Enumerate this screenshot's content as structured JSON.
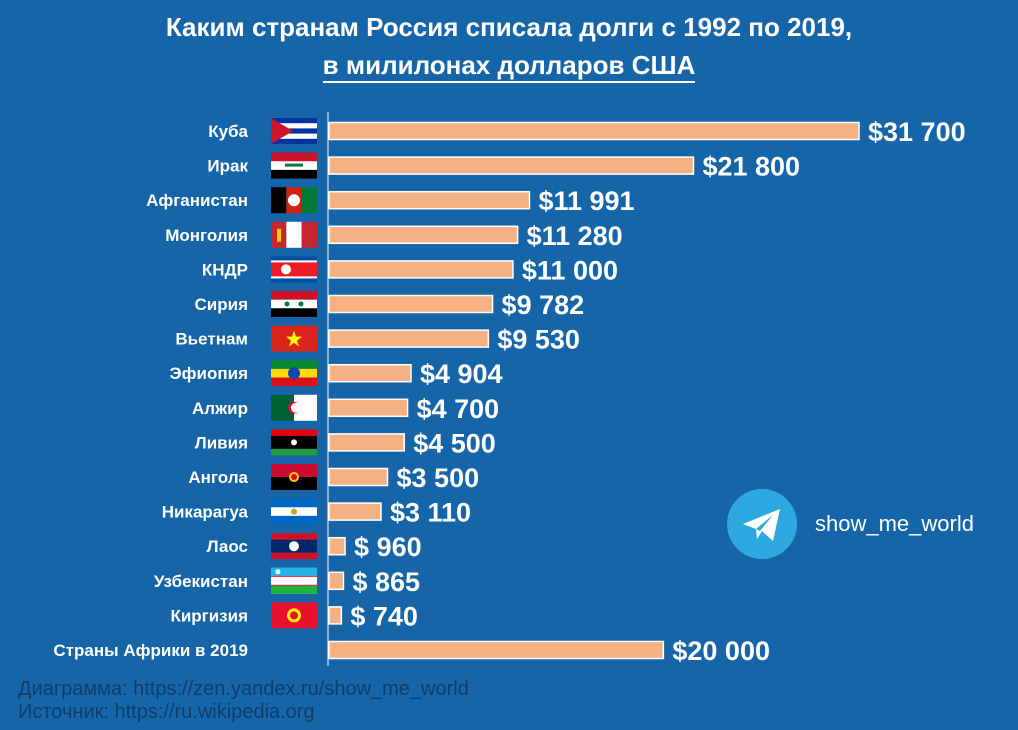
{
  "title_line1": "Каким странам Россия списала долги с 1992 по 2019,",
  "title_line2": "в милилонах долларов США",
  "telegram_icon": "paper-plane-icon",
  "telegram_handle": "show_me_world",
  "footer_line1": "Диаграмма: https://zen.yandex.ru/show_me_world",
  "footer_line2": "Источник: https://ru.wikipedia.org",
  "colors": {
    "background": "#1565a8",
    "bar": "#f4b183",
    "telegram": "#2ea8e0",
    "footer_text": "#0f3d6b"
  },
  "chart_data": {
    "type": "bar",
    "orientation": "horizontal",
    "title": "Каким странам Россия списала долги с 1992 по 2019, в милилонах долларов США",
    "xlabel": "",
    "ylabel": "",
    "categories": [
      "Куба",
      "Ирак",
      "Афганистан",
      "Монголия",
      "КНДР",
      "Сирия",
      "Вьетнам",
      "Эфиопия",
      "Алжир",
      "Ливия",
      "Ангола",
      "Никарагуа",
      "Лаос",
      "Узбекистан",
      "Киргизия",
      "Страны Африки в 2019"
    ],
    "values": [
      31700,
      21800,
      11991,
      11280,
      11000,
      9782,
      9530,
      4904,
      4700,
      4500,
      3500,
      3110,
      960,
      865,
      740,
      20000
    ],
    "value_labels": [
      "$31 700",
      "$21 800",
      "$11 991",
      "$11 280",
      "$11 000",
      "$9 782",
      "$9 530",
      "$4 904",
      "$4 700",
      "$4 500",
      "$3 500",
      "$3 110",
      "$ 960",
      "$ 865",
      "$ 740",
      "$20 000"
    ],
    "flags": [
      "cuba-flag",
      "iraq-flag",
      "afghanistan-flag",
      "mongolia-flag",
      "dprk-flag",
      "syria-flag",
      "vietnam-flag",
      "ethiopia-flag",
      "algeria-flag",
      "libya-flag",
      "angola-flag",
      "nicaragua-flag",
      "laos-flag",
      "uzbekistan-flag",
      "kyrgyzstan-flag",
      ""
    ],
    "xlim": [
      0,
      31700
    ],
    "grid": false,
    "legend": "none"
  }
}
